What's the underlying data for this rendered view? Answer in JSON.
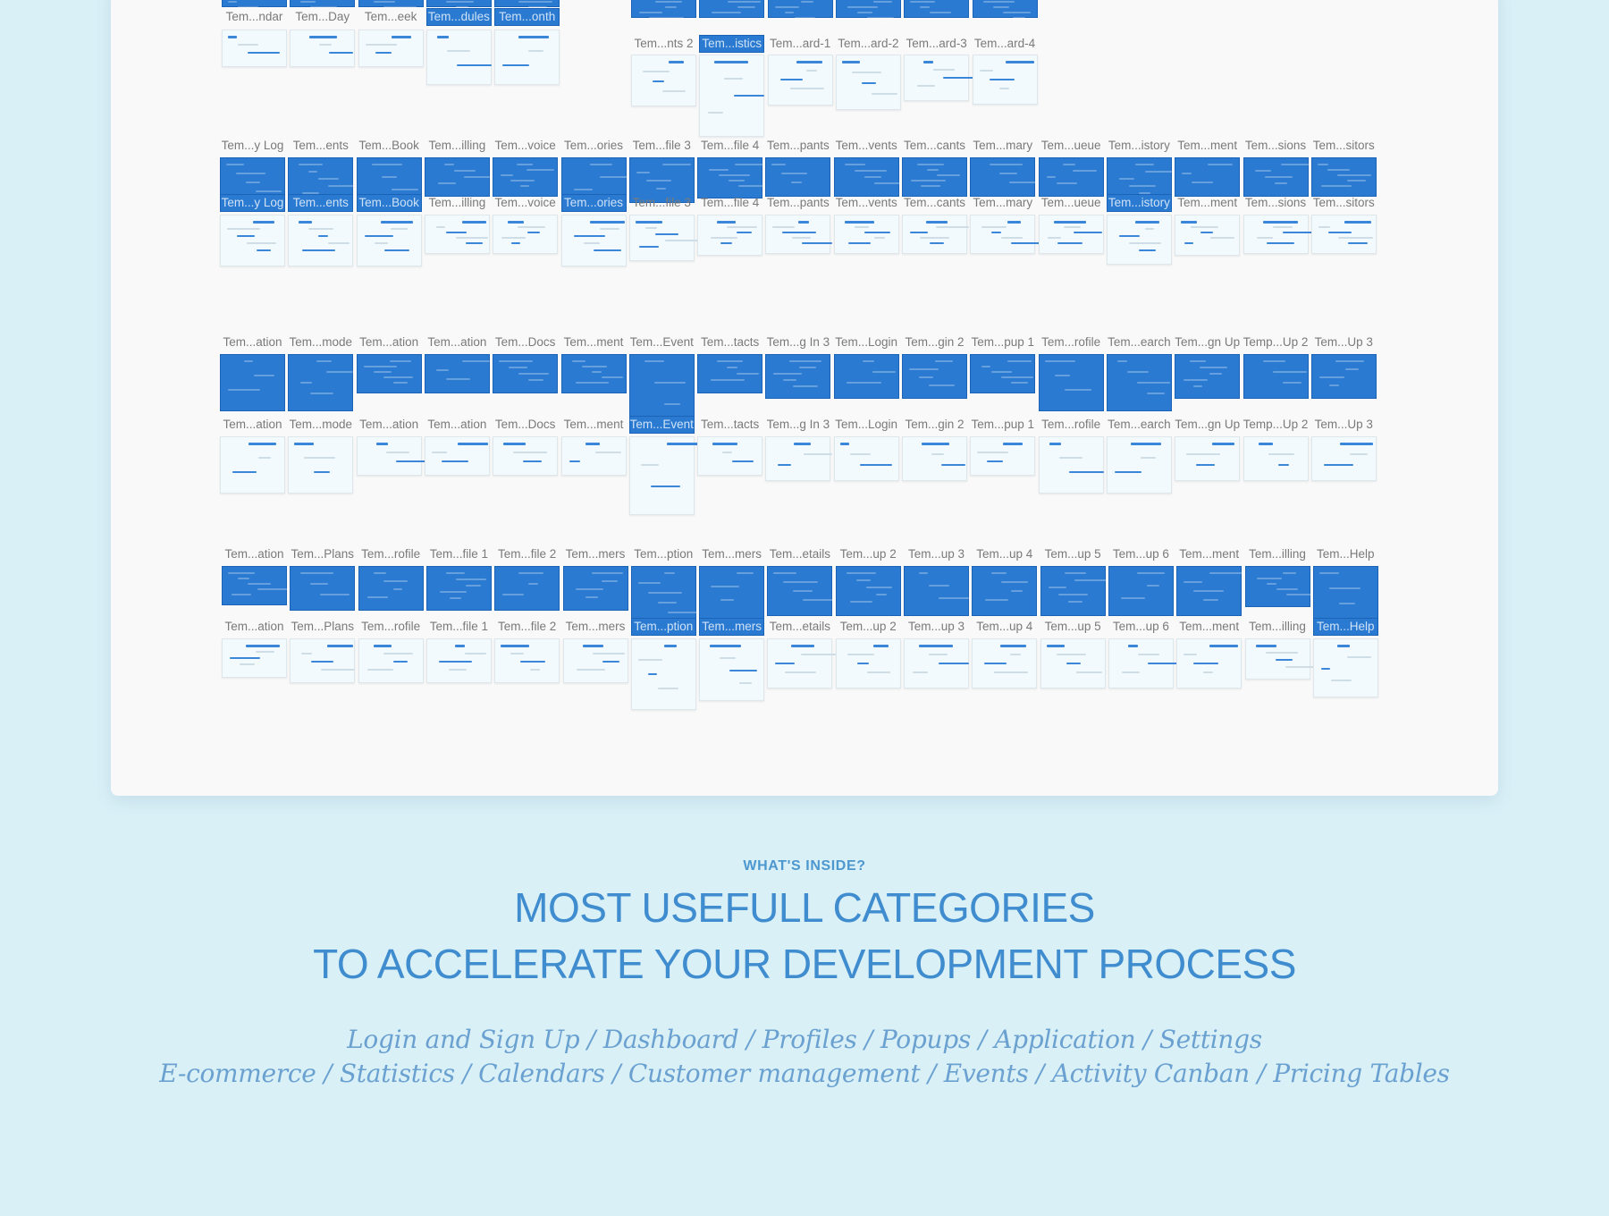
{
  "section": {
    "kicker": "WHAT'S INSIDE?",
    "headline_line1": "MOST USEFULL CATEGORIES",
    "headline_line2": "TO ACCELERATE YOUR DEVELOPMENT PROCESS",
    "categories_line1": "Login and Sign Up / Dashboard / Profiles / Popups / Application / Settings",
    "categories_line2": "E-commerce / Statistics / Calendars /  Customer management / Events / Activity Canban / Pricing Tables"
  },
  "colors": {
    "background": "#daf0f7",
    "canvas": "#f9f9f9",
    "artboard_blue": "#2a7ad2",
    "headline": "#3f8ccf",
    "categories": "#6aa1d0"
  },
  "artboard_groups": [
    {
      "top_labels": [],
      "labels": [
        "Tem...ndar",
        "Tem...Day",
        "Tem...eek",
        "Tem...dules",
        "Tem...onth"
      ],
      "selected": [
        3,
        4
      ]
    },
    {
      "top_labels": [],
      "labels": [
        "Tem...nts 2",
        "Tem...istics",
        "Tem...ard-1",
        "Tem...ard-2",
        "Tem...ard-3",
        "Tem...ard-4"
      ],
      "selected": [
        1
      ]
    },
    {
      "top_labels": [
        "Tem...y Log",
        "Tem...ents",
        "Tem...Book",
        "Tem...illing",
        "Tem...voice",
        "Tem...ories",
        "Tem...file 3",
        "Tem...file 4",
        "Tem...pants",
        "Tem...vents",
        "Tem...cants",
        "Tem...mary",
        "Tem...ueue",
        "Tem...istory",
        "Tem...ment",
        "Tem...sions",
        "Tem...sitors"
      ],
      "labels": [
        "Tem...y Log",
        "Tem...ents",
        "Tem...Book",
        "Tem...illing",
        "Tem...voice",
        "Tem...ories",
        "Tem...file 3",
        "Tem...file 4",
        "Tem...pants",
        "Tem...vents",
        "Tem...cants",
        "Tem...mary",
        "Tem...ueue",
        "Tem...istory",
        "Tem...ment",
        "Tem...sions",
        "Tem...sitors"
      ],
      "selected": [
        0,
        1,
        2,
        5,
        13
      ]
    },
    {
      "top_labels": [
        "Tem...ation",
        "Tem...mode",
        "Tem...ation",
        "Tem...ation",
        "Tem...Docs",
        "Tem...ment",
        "Tem...Event",
        "Tem...tacts",
        "Tem...g In 3",
        "Tem...Login",
        "Tem...gin 2",
        "Tem...pup 1",
        "Tem...rofile",
        "Tem...earch",
        "Tem...gn Up",
        "Temp...Up 2",
        "Tem...Up 3"
      ],
      "labels": [
        "Tem...ation",
        "Tem...mode",
        "Tem...ation",
        "Tem...ation",
        "Tem...Docs",
        "Tem...ment",
        "Tem...Event",
        "Tem...tacts",
        "Tem...g In 3",
        "Tem...Login",
        "Tem...gin 2",
        "Tem...pup 1",
        "Tem...rofile",
        "Tem...earch",
        "Tem...gn Up",
        "Temp...Up 2",
        "Tem...Up 3"
      ],
      "selected": [
        6
      ]
    },
    {
      "top_labels": [
        "Tem...ation",
        "Tem...Plans",
        "Tem...rofile",
        "Tem...file 1",
        "Tem...file 2",
        "Tem...mers",
        "Tem...ption",
        "Tem...mers",
        "Tem...etails",
        "Tem...up 2",
        "Tem...up 3",
        "Tem...up 4",
        "Tem...up 5",
        "Tem...up 6",
        "Tem...ment",
        "Tem...illing",
        "Tem...Help"
      ],
      "labels": [
        "Tem...ation",
        "Tem...Plans",
        "Tem...rofile",
        "Tem...file 1",
        "Tem...file 2",
        "Tem...mers",
        "Tem...ption",
        "Tem...mers",
        "Tem...etails",
        "Tem...up 2",
        "Tem...up 3",
        "Tem...up 4",
        "Tem...up 5",
        "Tem...up 6",
        "Tem...ment",
        "Tem...illing",
        "Tem...Help"
      ],
      "selected": [
        6,
        7,
        16
      ]
    }
  ]
}
